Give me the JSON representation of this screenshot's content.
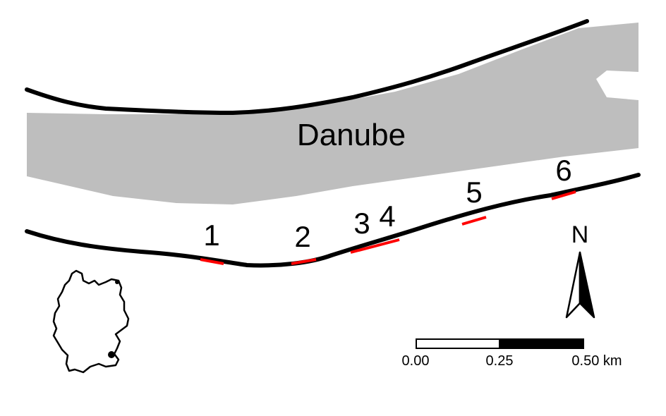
{
  "map": {
    "river_label": "Danube",
    "site_labels": [
      "1",
      "2",
      "3",
      "4",
      "5",
      "6"
    ],
    "north_arrow": {
      "label": "N",
      "icon": "north-arrow-icon"
    },
    "scale_bar": {
      "tick_labels": [
        "0.00",
        "0.25",
        "0.50 km"
      ]
    },
    "inset": {
      "icon": "germany-outline-icon"
    },
    "colors": {
      "water": "#bebebe",
      "bank_line": "#000000",
      "site_segment": "#ff0000",
      "background": "#ffffff"
    }
  }
}
